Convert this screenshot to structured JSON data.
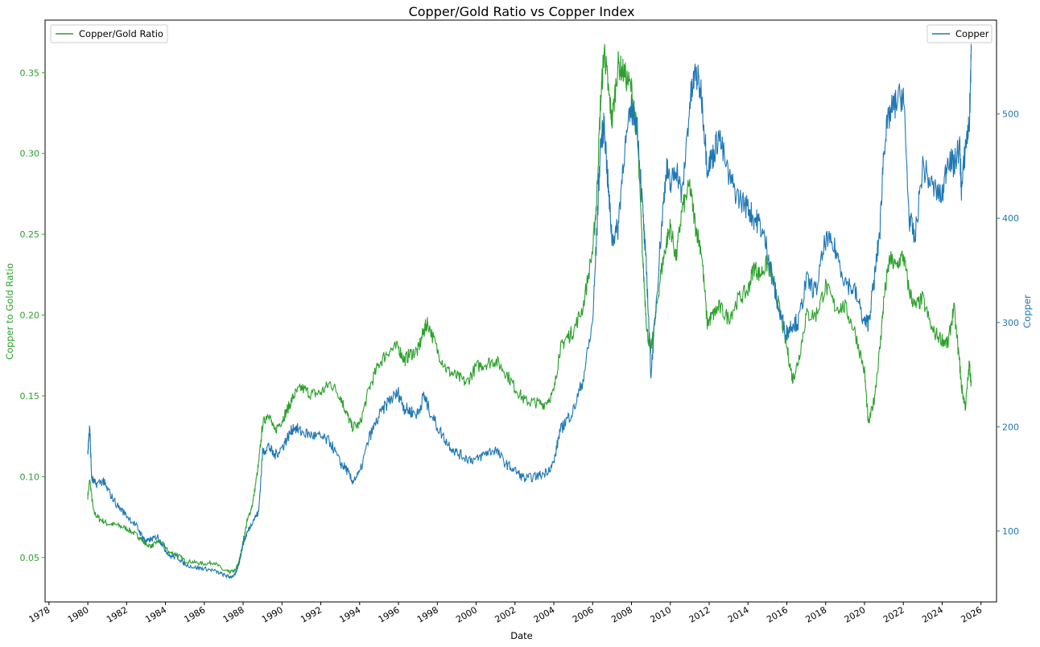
{
  "chart_data": {
    "type": "line",
    "title": "Copper/Gold Ratio vs Copper Index",
    "xlabel": "Date",
    "ylabel_left": "Copper to Gold Ratio",
    "ylabel_right": "Copper",
    "colors": {
      "ratio": "#2ca02c",
      "copper": "#1f77b4",
      "axes": "#000000"
    },
    "xlim": [
      1977.8,
      2026.8
    ],
    "ylim_left": [
      0.0225,
      0.3825
    ],
    "ylim_right": [
      32,
      590
    ],
    "x_ticks": [
      1978,
      1980,
      1982,
      1984,
      1986,
      1988,
      1990,
      1992,
      1994,
      1996,
      1998,
      2000,
      2002,
      2004,
      2006,
      2008,
      2010,
      2012,
      2014,
      2016,
      2018,
      2020,
      2022,
      2024,
      2026
    ],
    "y_ticks_left": [
      "0.05",
      "0.10",
      "0.15",
      "0.20",
      "0.25",
      "0.30",
      "0.35"
    ],
    "y_ticks_right": [
      100,
      200,
      300,
      400,
      500
    ],
    "legend_left": {
      "label": "Copper/Gold Ratio",
      "placement": "upper-left"
    },
    "legend_right": {
      "label": "Copper",
      "placement": "upper-right"
    },
    "grid": false,
    "series": [
      {
        "name": "Copper/Gold Ratio",
        "axis": "left",
        "x": [
          1980.0,
          1980.1,
          1980.3,
          1980.6,
          1981.0,
          1981.5,
          1982.0,
          1982.5,
          1982.8,
          1983.0,
          1983.3,
          1983.6,
          1983.9,
          1984.2,
          1984.6,
          1985.0,
          1985.5,
          1986.0,
          1986.5,
          1987.0,
          1987.3,
          1987.6,
          1987.8,
          1988.0,
          1988.2,
          1988.5,
          1988.8,
          1989.0,
          1989.3,
          1989.6,
          1990.0,
          1990.3,
          1990.6,
          1991.0,
          1991.5,
          1992.0,
          1992.5,
          1993.0,
          1993.3,
          1993.6,
          1994.0,
          1994.5,
          1995.0,
          1995.5,
          1996.0,
          1996.3,
          1996.6,
          1997.0,
          1997.3,
          1997.5,
          1998.0,
          1998.5,
          1999.0,
          1999.5,
          2000.0,
          2000.5,
          2001.0,
          2001.5,
          2002.0,
          2002.5,
          2003.0,
          2003.5,
          2004.0,
          2004.3,
          2004.6,
          2005.0,
          2005.5,
          2006.0,
          2006.2,
          2006.4,
          2006.6,
          2006.8,
          2007.0,
          2007.3,
          2007.6,
          2008.0,
          2008.3,
          2008.6,
          2008.8,
          2009.0,
          2009.2,
          2009.5,
          2009.8,
          2010.0,
          2010.3,
          2010.6,
          2011.0,
          2011.3,
          2011.6,
          2011.9,
          2012.2,
          2012.5,
          2013.0,
          2013.5,
          2014.0,
          2014.3,
          2014.6,
          2015.0,
          2015.3,
          2015.6,
          2016.0,
          2016.3,
          2016.6,
          2017.0,
          2017.5,
          2018.0,
          2018.5,
          2019.0,
          2019.5,
          2020.0,
          2020.2,
          2020.5,
          2020.8,
          2021.0,
          2021.3,
          2021.6,
          2022.0,
          2022.3,
          2022.6,
          2023.0,
          2023.5,
          2024.0,
          2024.3,
          2024.6,
          2024.9,
          2025.0,
          2025.2,
          2025.4,
          2025.5
        ],
        "values": [
          0.088,
          0.098,
          0.078,
          0.074,
          0.071,
          0.07,
          0.068,
          0.064,
          0.061,
          0.058,
          0.057,
          0.06,
          0.058,
          0.053,
          0.052,
          0.048,
          0.047,
          0.046,
          0.047,
          0.042,
          0.041,
          0.042,
          0.048,
          0.06,
          0.072,
          0.084,
          0.108,
          0.132,
          0.14,
          0.128,
          0.135,
          0.142,
          0.15,
          0.155,
          0.151,
          0.152,
          0.158,
          0.15,
          0.14,
          0.131,
          0.132,
          0.155,
          0.17,
          0.178,
          0.18,
          0.172,
          0.176,
          0.178,
          0.19,
          0.196,
          0.178,
          0.166,
          0.162,
          0.158,
          0.168,
          0.17,
          0.172,
          0.165,
          0.155,
          0.147,
          0.146,
          0.145,
          0.152,
          0.178,
          0.185,
          0.19,
          0.205,
          0.24,
          0.27,
          0.33,
          0.365,
          0.34,
          0.32,
          0.355,
          0.35,
          0.34,
          0.31,
          0.23,
          0.19,
          0.178,
          0.195,
          0.225,
          0.245,
          0.255,
          0.235,
          0.265,
          0.28,
          0.255,
          0.24,
          0.195,
          0.2,
          0.205,
          0.198,
          0.21,
          0.215,
          0.23,
          0.225,
          0.232,
          0.22,
          0.205,
          0.18,
          0.16,
          0.172,
          0.2,
          0.2,
          0.218,
          0.205,
          0.205,
          0.19,
          0.165,
          0.132,
          0.148,
          0.18,
          0.21,
          0.235,
          0.23,
          0.237,
          0.215,
          0.205,
          0.21,
          0.19,
          0.185,
          0.182,
          0.205,
          0.17,
          0.155,
          0.143,
          0.17,
          0.158
        ]
      },
      {
        "name": "Copper",
        "axis": "right",
        "x": [
          1980.0,
          1980.05,
          1980.1,
          1980.2,
          1980.4,
          1980.8,
          1981.0,
          1981.5,
          1982.0,
          1982.5,
          1982.8,
          1983.0,
          1983.3,
          1983.6,
          1983.9,
          1984.2,
          1984.6,
          1985.0,
          1985.5,
          1986.0,
          1986.5,
          1987.0,
          1987.3,
          1987.6,
          1987.8,
          1988.0,
          1988.2,
          1988.5,
          1988.8,
          1989.0,
          1989.3,
          1989.6,
          1990.0,
          1990.3,
          1990.6,
          1991.0,
          1991.5,
          1992.0,
          1992.5,
          1993.0,
          1993.3,
          1993.6,
          1994.0,
          1994.5,
          1995.0,
          1995.5,
          1996.0,
          1996.3,
          1996.6,
          1997.0,
          1997.3,
          1997.5,
          1998.0,
          1998.5,
          1999.0,
          1999.5,
          2000.0,
          2000.5,
          2001.0,
          2001.5,
          2002.0,
          2002.5,
          2003.0,
          2003.5,
          2004.0,
          2004.3,
          2004.6,
          2005.0,
          2005.5,
          2006.0,
          2006.2,
          2006.4,
          2006.6,
          2006.8,
          2007.0,
          2007.3,
          2007.6,
          2008.0,
          2008.3,
          2008.6,
          2008.8,
          2009.0,
          2009.2,
          2009.5,
          2009.8,
          2010.0,
          2010.3,
          2010.6,
          2011.0,
          2011.3,
          2011.6,
          2011.9,
          2012.2,
          2012.5,
          2013.0,
          2013.5,
          2014.0,
          2014.3,
          2014.6,
          2015.0,
          2015.3,
          2015.6,
          2016.0,
          2016.3,
          2016.6,
          2017.0,
          2017.5,
          2018.0,
          2018.5,
          2019.0,
          2019.5,
          2020.0,
          2020.2,
          2020.5,
          2020.8,
          2021.0,
          2021.3,
          2021.6,
          2022.0,
          2022.3,
          2022.6,
          2023.0,
          2023.5,
          2024.0,
          2024.3,
          2024.6,
          2024.9,
          2025.0,
          2025.2,
          2025.4,
          2025.5
        ],
        "values": [
          172,
          190,
          200,
          150,
          145,
          148,
          140,
          125,
          115,
          105,
          95,
          90,
          92,
          95,
          85,
          76,
          75,
          68,
          65,
          64,
          62,
          58,
          56,
          58,
          70,
          88,
          98,
          110,
          118,
          175,
          182,
          172,
          180,
          190,
          200,
          195,
          192,
          190,
          185,
          165,
          160,
          148,
          155,
          190,
          210,
          225,
          232,
          218,
          215,
          212,
          230,
          220,
          200,
          185,
          175,
          170,
          168,
          175,
          178,
          165,
          158,
          150,
          152,
          155,
          165,
          195,
          205,
          215,
          245,
          300,
          380,
          470,
          490,
          430,
          380,
          390,
          460,
          505,
          490,
          400,
          340,
          250,
          300,
          380,
          450,
          430,
          450,
          420,
          510,
          540,
          520,
          450,
          460,
          480,
          440,
          420,
          410,
          400,
          395,
          370,
          340,
          310,
          290,
          300,
          300,
          340,
          330,
          380,
          370,
          340,
          330,
          300,
          300,
          340,
          390,
          470,
          500,
          510,
          520,
          400,
          380,
          450,
          430,
          420,
          460,
          450,
          470,
          425,
          470,
          490,
          560
        ]
      }
    ]
  }
}
